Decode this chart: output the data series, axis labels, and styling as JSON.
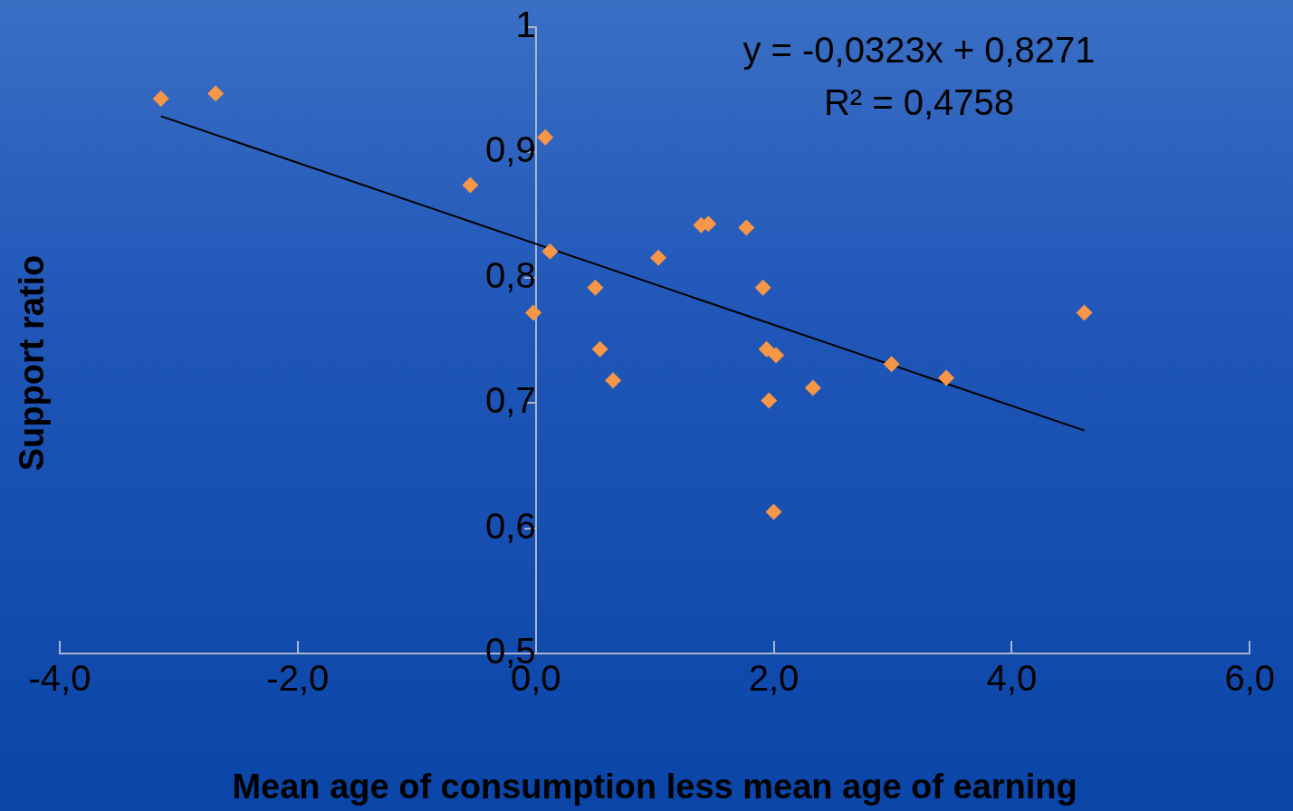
{
  "chart_data": {
    "type": "scatter",
    "xlabel": "Mean age of consumption less mean age of earning",
    "ylabel": "Support ratio",
    "annotations": [
      "y = -0,0323x + 0,8271",
      "R² = 0,4758"
    ],
    "xlim": [
      -4,
      6
    ],
    "ylim": [
      0.5,
      1
    ],
    "xticks": [
      {
        "value": -4,
        "label": "-4,0"
      },
      {
        "value": -2,
        "label": "-2,0"
      },
      {
        "value": 0,
        "label": "0,0"
      },
      {
        "value": 2,
        "label": "2,0"
      },
      {
        "value": 4,
        "label": "4,0"
      },
      {
        "value": 6,
        "label": "6,0"
      }
    ],
    "yticks": [
      {
        "value": 0.5,
        "label": "0,5"
      },
      {
        "value": 0.6,
        "label": "0,6"
      },
      {
        "value": 0.7,
        "label": "0,7"
      },
      {
        "value": 0.8,
        "label": "0,8"
      },
      {
        "value": 0.9,
        "label": "0,9"
      },
      {
        "value": 1,
        "label": "1"
      }
    ],
    "grid": false,
    "legend": false,
    "marker": "diamond",
    "series": [
      {
        "color": "#f79646",
        "x": [
          -3.15,
          -2.69,
          0.08,
          -0.55,
          0.12,
          -0.02,
          0.5,
          0.54,
          0.65,
          1.03,
          1.39,
          1.45,
          1.77,
          1.91,
          1.94,
          2.02,
          1.96,
          2.33,
          2.0,
          2.99,
          3.45,
          4.61
        ],
        "values": [
          0.943,
          0.947,
          0.912,
          0.874,
          0.821,
          0.772,
          0.792,
          0.743,
          0.718,
          0.816,
          0.842,
          0.843,
          0.84,
          0.792,
          0.743,
          0.738,
          0.702,
          0.712,
          0.613,
          0.731,
          0.72,
          0.772
        ]
      },
      {
        "type": "line",
        "color": "#000000",
        "line_style": "solid",
        "marker": "none",
        "x": [
          -3.15,
          4.61
        ],
        "values": [
          0.9289,
          0.678
        ]
      }
    ]
  }
}
